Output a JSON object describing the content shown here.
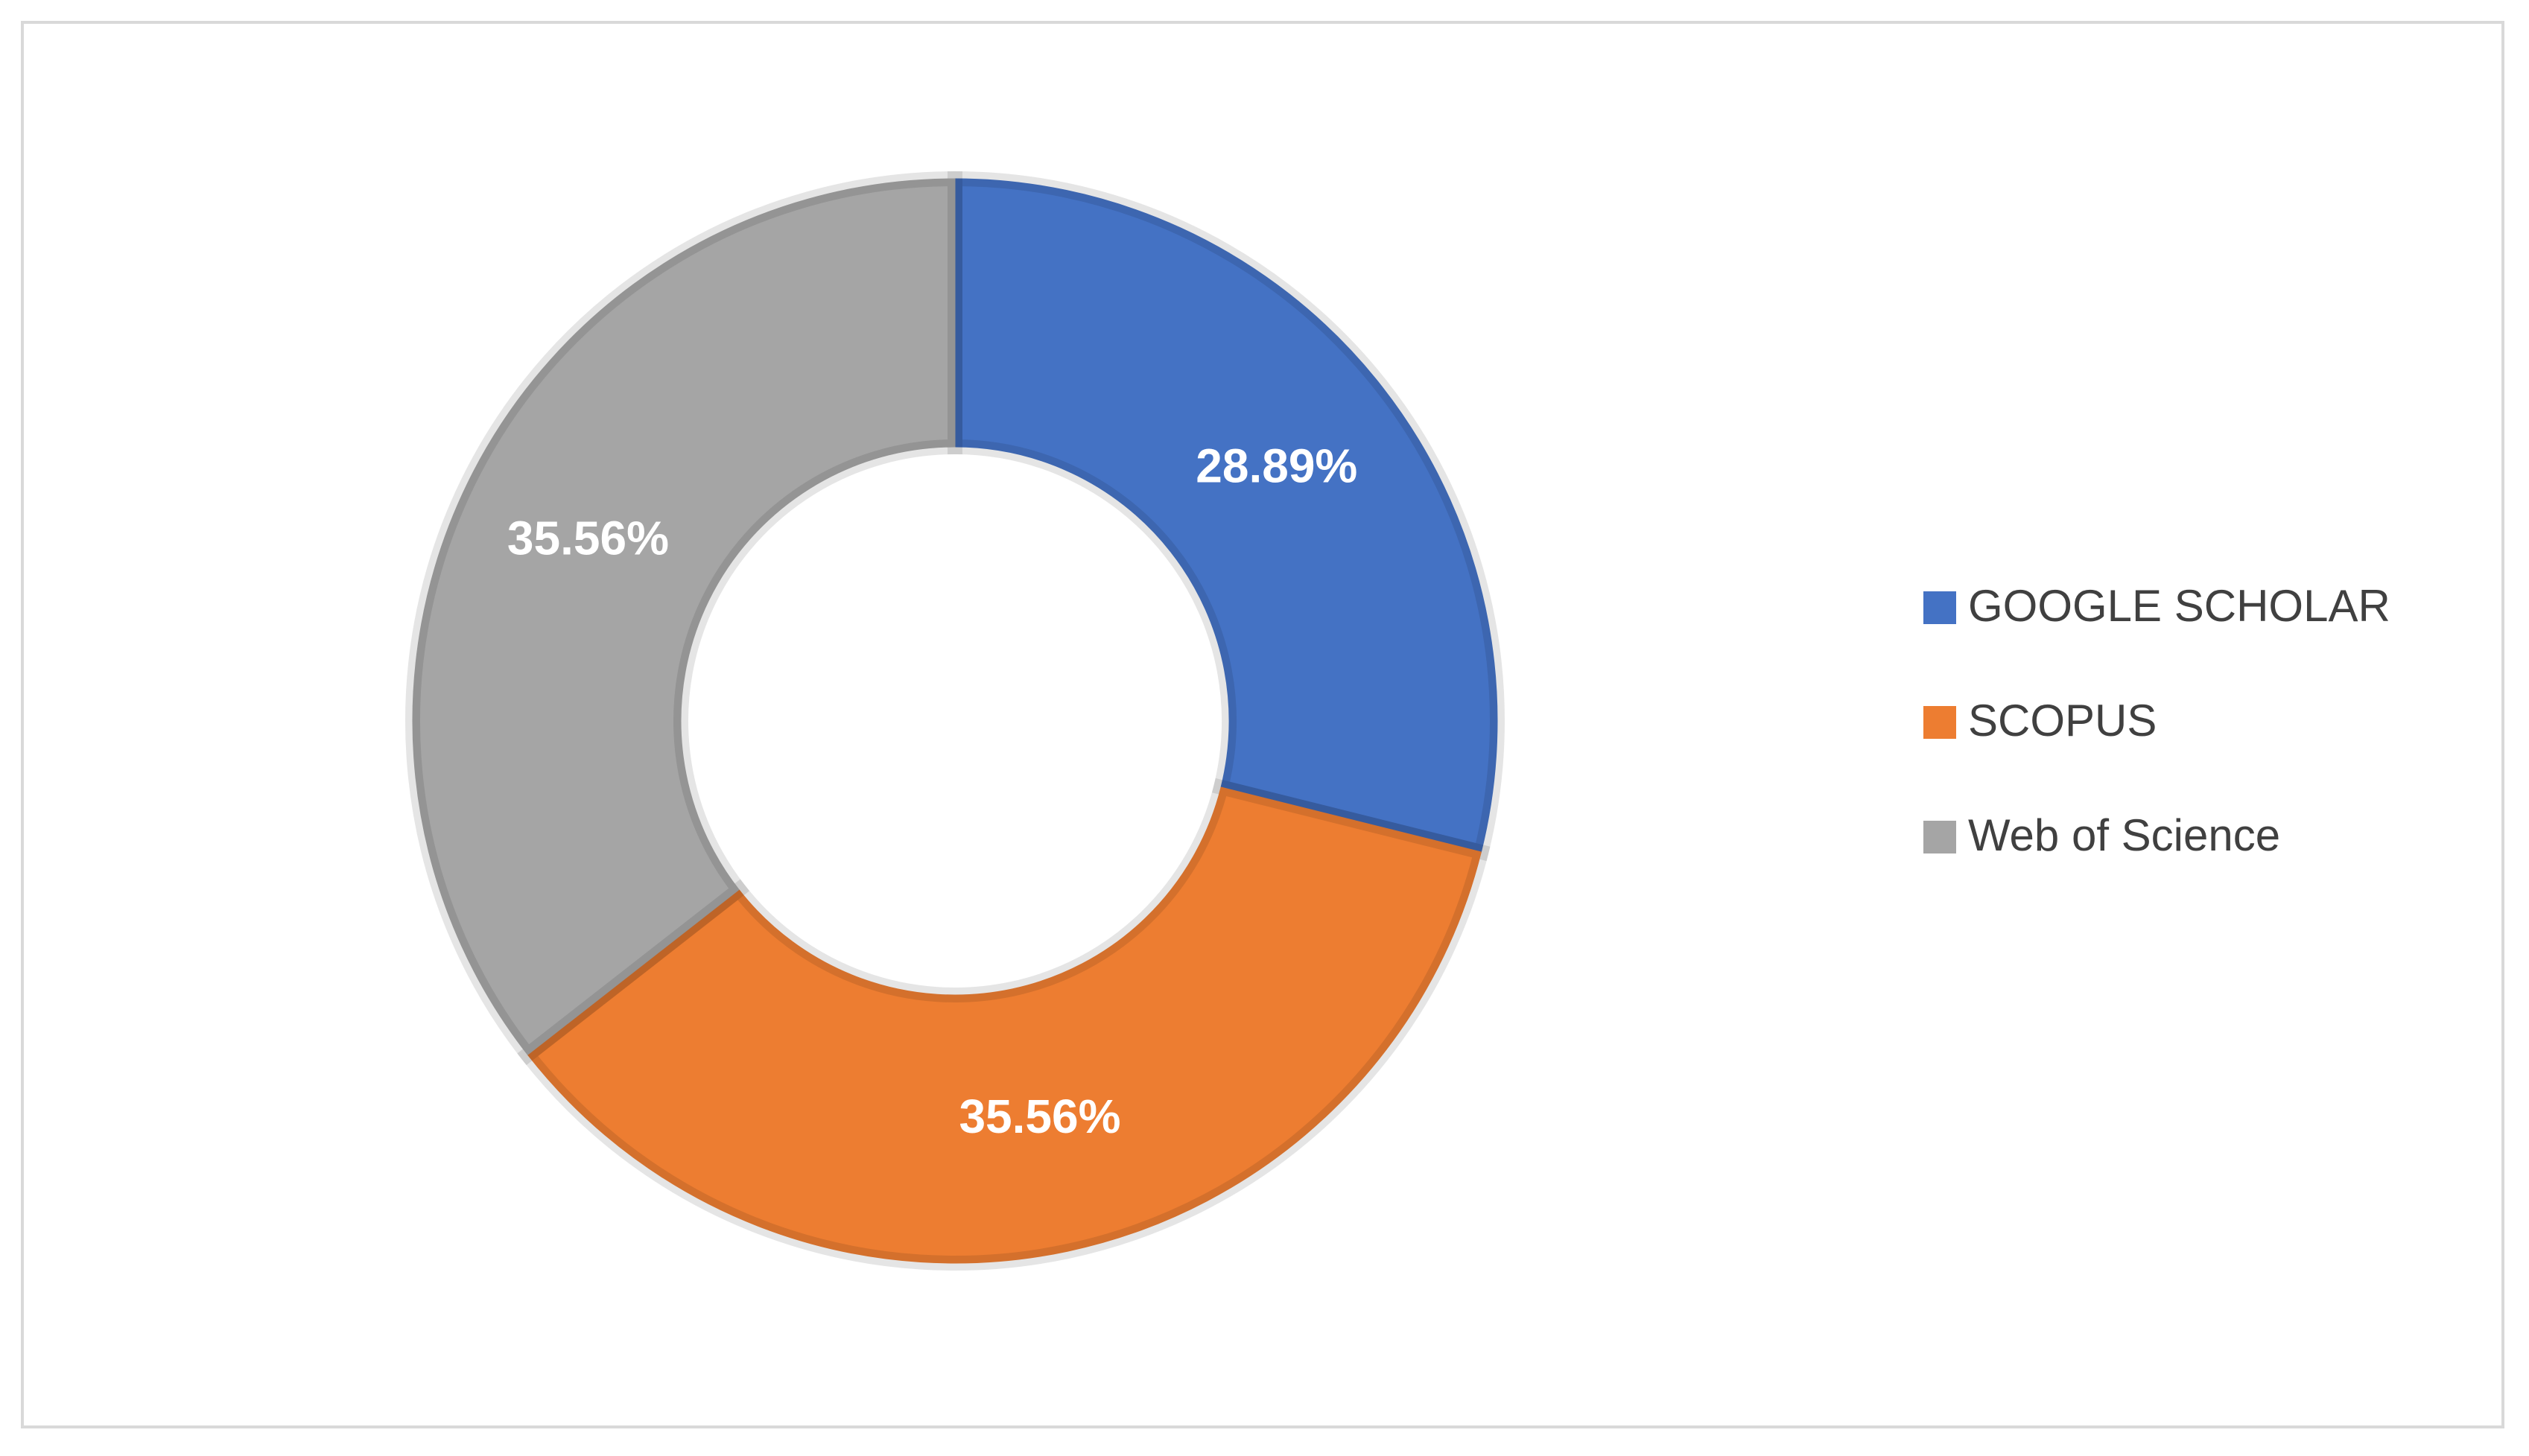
{
  "chart_data": {
    "type": "donut",
    "categories": [
      "GOOGLE SCHOLAR",
      "SCOPUS",
      "Web of Science"
    ],
    "values": [
      28.89,
      35.56,
      35.56
    ],
    "value_labels": [
      "28.89%",
      "35.56%",
      "35.56%"
    ],
    "colors": [
      "#4472c4",
      "#ed7d31",
      "#a5a5a5"
    ],
    "legend": "right"
  }
}
